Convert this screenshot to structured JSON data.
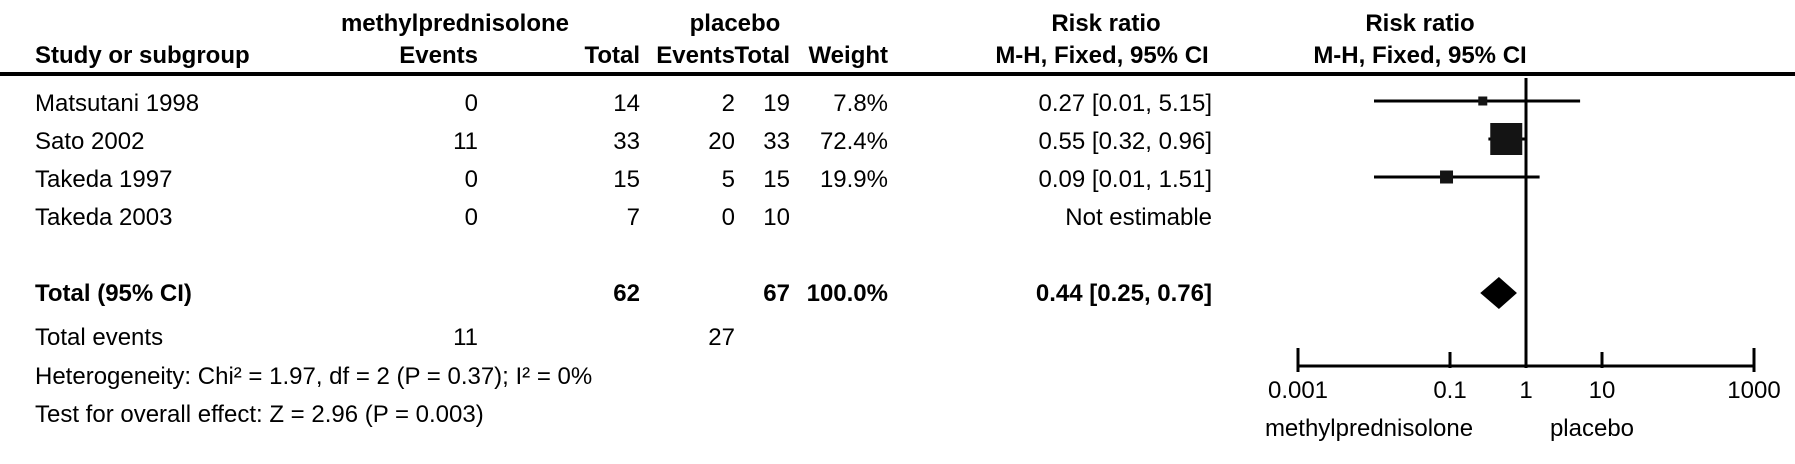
{
  "table": {
    "group_headers": {
      "group1": "methylprednisolone",
      "group2": "placebo",
      "risk_ratio_left": "Risk ratio",
      "risk_ratio_right": "Risk ratio"
    },
    "col_headers": {
      "study": "Study or subgroup",
      "events1": "Events",
      "total1": "Total",
      "events2": "Events",
      "total2": "Total",
      "weight": "Weight",
      "mh_left": "M-H, Fixed, 95% CI",
      "mh_right": "M-H, Fixed, 95% CI"
    },
    "rows": [
      {
        "study": "Matsutani 1998",
        "events1": "0",
        "total1": "14",
        "events2": "2",
        "total2": "19",
        "weight": "7.8%",
        "rr": "0.27 [0.01, 5.15]"
      },
      {
        "study": "Sato 2002",
        "events1": "11",
        "total1": "33",
        "events2": "20",
        "total2": "33",
        "weight": "72.4%",
        "rr": "0.55 [0.32, 0.96]"
      },
      {
        "study": "Takeda 1997",
        "events1": "0",
        "total1": "15",
        "events2": "5",
        "total2": "15",
        "weight": "19.9%",
        "rr": "0.09 [0.01, 1.51]"
      },
      {
        "study": "Takeda 2003",
        "events1": "0",
        "total1": "7",
        "events2": "0",
        "total2": "10",
        "weight": "",
        "rr": "Not estimable"
      }
    ],
    "total_row": {
      "label": "Total (95% CI)",
      "total1": "62",
      "total2": "67",
      "weight": "100.0%",
      "rr": "0.44 [0.25, 0.76]"
    },
    "total_events": {
      "label": "Total events",
      "events1": "11",
      "events2": "27"
    },
    "heterogeneity": "Heterogeneity: Chi² = 1.97, df = 2 (P = 0.37); I² = 0%",
    "overall_effect": "Test for overall effect: Z = 2.96 (P = 0.003)"
  },
  "chart_data": {
    "type": "forest",
    "scale": "log10",
    "measure": "Risk ratio, M-H, Fixed, 95% CI",
    "axis_range": [
      0.001,
      1000
    ],
    "axis_ticks": [
      0.001,
      0.1,
      1,
      10,
      1000
    ],
    "null_line": 1,
    "favours_left_label": "methylprednisolone",
    "favours_right_label": "placebo",
    "studies": [
      {
        "name": "Matsutani 1998",
        "rr": 0.27,
        "ci_low": 0.01,
        "ci_high": 5.15,
        "weight_pct": 7.8
      },
      {
        "name": "Sato 2002",
        "rr": 0.55,
        "ci_low": 0.32,
        "ci_high": 0.96,
        "weight_pct": 72.4
      },
      {
        "name": "Takeda 1997",
        "rr": 0.09,
        "ci_low": 0.01,
        "ci_high": 1.51,
        "weight_pct": 19.9
      },
      {
        "name": "Takeda 2003",
        "rr": null,
        "ci_low": null,
        "ci_high": null,
        "weight_pct": null,
        "note": "Not estimable"
      }
    ],
    "total": {
      "label": "Total (95% CI)",
      "rr": 0.44,
      "ci_low": 0.25,
      "ci_high": 0.76,
      "weight_pct": 100.0
    }
  },
  "colors": {
    "ink": "#000000",
    "marker": "#141414",
    "background": "#ffffff"
  }
}
